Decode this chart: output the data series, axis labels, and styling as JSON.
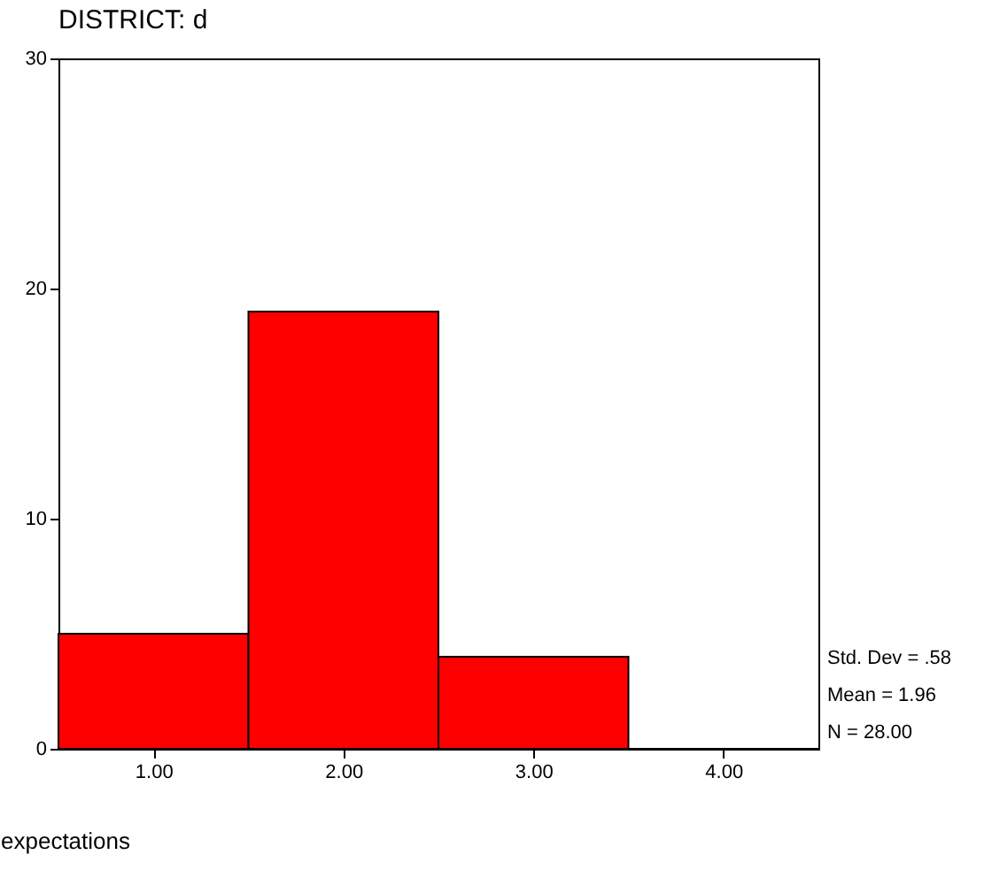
{
  "chart_data": {
    "type": "histogram",
    "title": "DISTRICT:  d",
    "xlabel": "expectations",
    "bins": [
      0.5,
      1.5,
      2.5,
      3.5,
      4.5
    ],
    "values": [
      5,
      19,
      4,
      0
    ],
    "color": "#ff0000",
    "xlim": [
      0.5,
      4.5
    ],
    "xticks": [
      {
        "value": 1,
        "label": "1.00"
      },
      {
        "value": 2,
        "label": "2.00"
      },
      {
        "value": 3,
        "label": "3.00"
      },
      {
        "value": 4,
        "label": "4.00"
      }
    ],
    "ylim": [
      0,
      30
    ],
    "yticks": [
      0,
      10,
      20,
      30
    ],
    "grid": false,
    "annotations": [
      "Std. Dev = .58",
      "Mean = 1.96",
      "N = 28.00"
    ]
  }
}
